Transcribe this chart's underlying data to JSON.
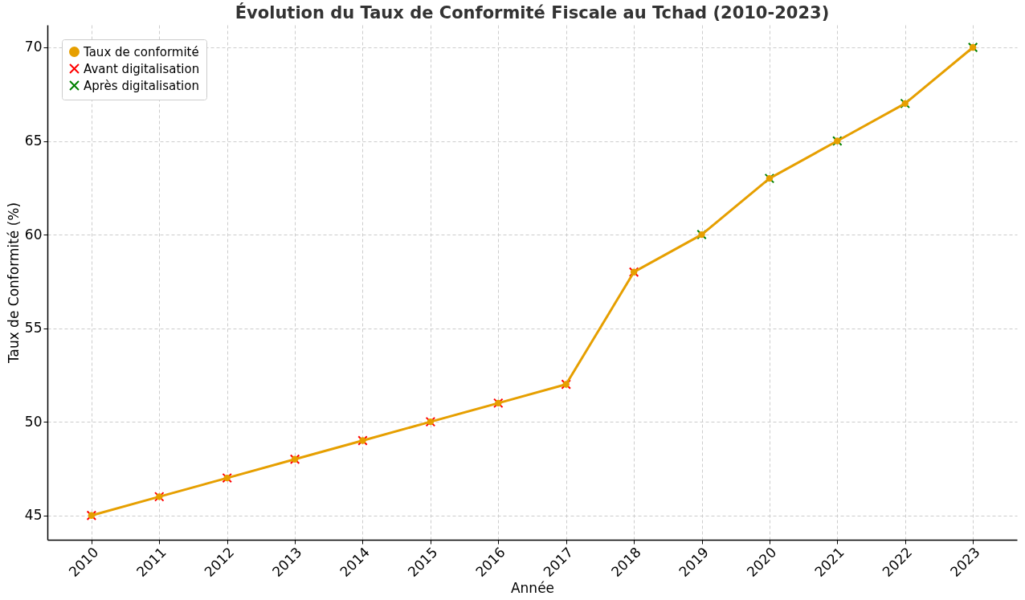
{
  "chart_data": {
    "type": "line",
    "title": "Évolution du Taux de Conformité Fiscale au Tchad (2010-2023)",
    "xlabel": "Année",
    "ylabel": "Taux de Conformité (%)",
    "xlim": [
      2009.35,
      2023.65
    ],
    "xticks": [
      2010,
      2011,
      2012,
      2013,
      2014,
      2015,
      2016,
      2017,
      2018,
      2019,
      2020,
      2021,
      2022,
      2023
    ],
    "ylim": [
      43.7,
      71.2
    ],
    "yticks": [
      45,
      50,
      55,
      60,
      65,
      70
    ],
    "grid": true,
    "legend": "top left",
    "series": [
      {
        "name": "Taux de conformité",
        "color": "#e69f00",
        "marker": "circle",
        "line_style": "solid",
        "x": [
          2010,
          2011,
          2012,
          2013,
          2014,
          2015,
          2016,
          2017,
          2018,
          2019,
          2020,
          2021,
          2022,
          2023
        ],
        "values": [
          45,
          46,
          47,
          48,
          49,
          50,
          51,
          52,
          58,
          60,
          63,
          65,
          67,
          70
        ]
      },
      {
        "name": "Avant digitalisation",
        "type": "scatter",
        "color": "#ff0000",
        "marker": "cross",
        "x": [
          2010,
          2011,
          2012,
          2013,
          2014,
          2015,
          2016,
          2017,
          2018
        ],
        "values": [
          45,
          46,
          47,
          48,
          49,
          50,
          51,
          52,
          58
        ]
      },
      {
        "name": "Après digitalisation",
        "type": "scatter",
        "color": "#008000",
        "marker": "cross",
        "x": [
          2019,
          2020,
          2021,
          2022,
          2023
        ],
        "values": [
          60,
          63,
          65,
          67,
          70
        ]
      }
    ]
  }
}
